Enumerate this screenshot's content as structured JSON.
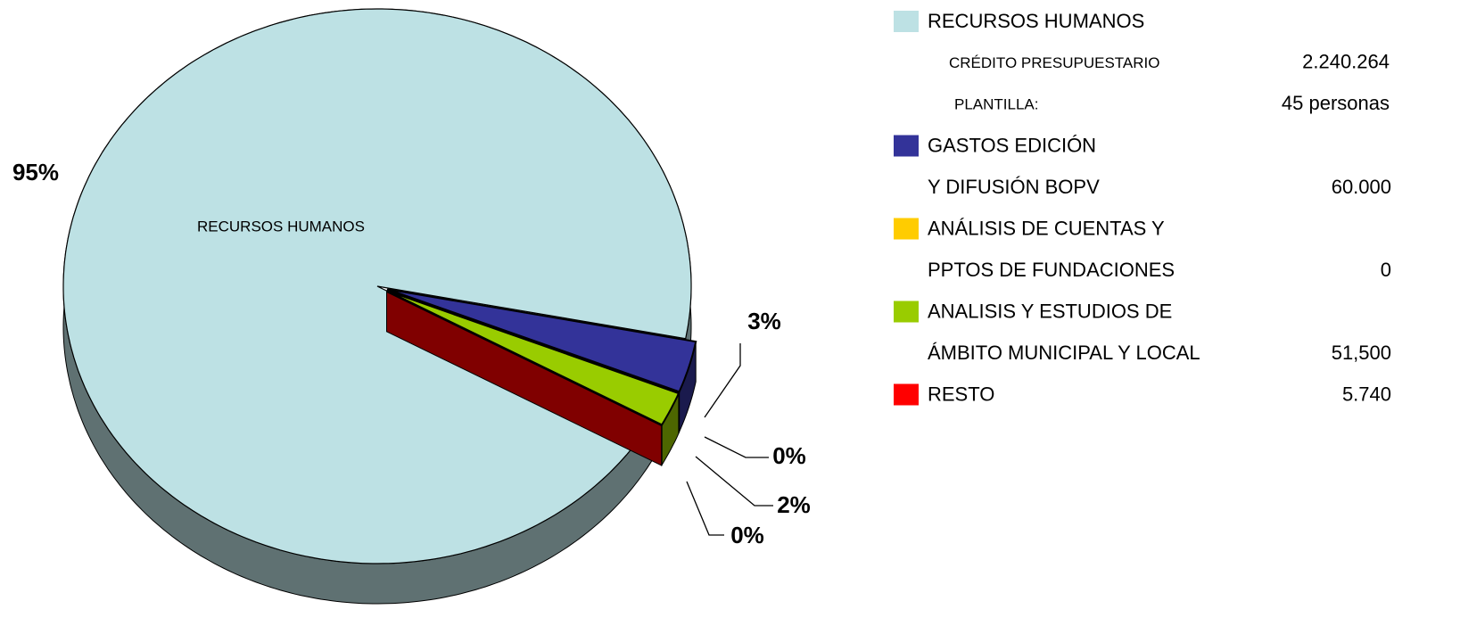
{
  "chart_data": {
    "type": "pie",
    "center_label": "RECURSOS HUMANOS",
    "values": [
      95,
      3,
      0,
      2,
      0
    ],
    "value_labels": [
      "95%",
      "3%",
      "0%",
      "2%",
      "0%"
    ],
    "colors": [
      "#bde1e4",
      "#333399",
      "#ffcc00",
      "#99cc00",
      "#ff0000"
    ],
    "legend": [
      {
        "lines": [
          "RECURSOS HUMANOS"
        ],
        "details": [
          {
            "label": "CRÉDITO PRESUPUESTARIO",
            "value": "2.240.264"
          },
          {
            "label": "PLANTILLA:",
            "value": "45 personas"
          }
        ]
      },
      {
        "lines": [
          "GASTOS EDICIÓN",
          "Y DIFUSIÓN BOPV"
        ],
        "amount": "60.000"
      },
      {
        "lines": [
          "ANÁLISIS DE CUENTAS Y",
          "PPTOS DE FUNDACIONES"
        ],
        "amount": "0"
      },
      {
        "lines": [
          "ANALISIS Y ESTUDIOS DE",
          "ÁMBITO MUNICIPAL Y LOCAL"
        ],
        "amount": "51,500"
      },
      {
        "lines": [
          "RESTO"
        ],
        "amount": "5.740"
      }
    ]
  }
}
